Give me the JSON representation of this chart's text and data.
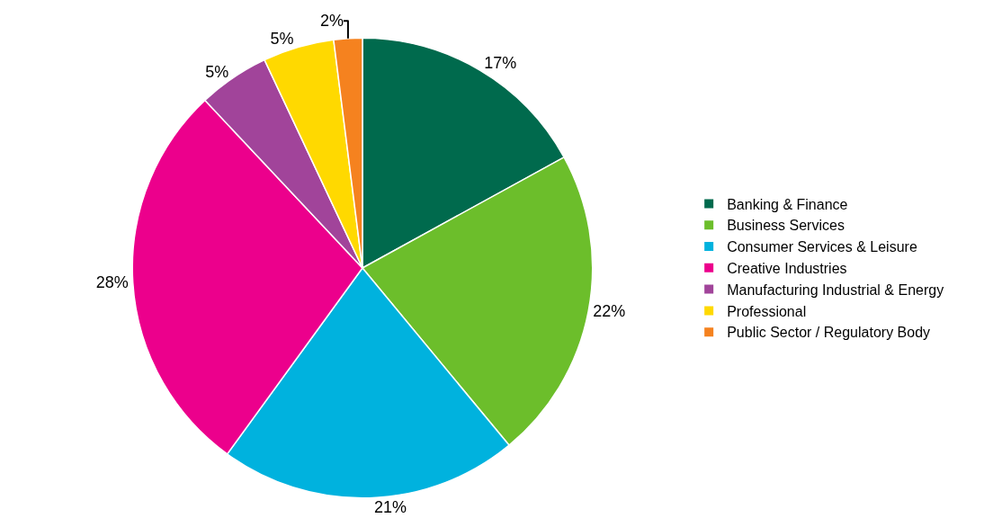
{
  "chart_data": {
    "type": "pie",
    "categories": [
      "Banking & Finance",
      "Business Services",
      "Consumer Services & Leisure",
      "Creative Industries",
      "Manufacturing Industrial & Energy",
      "Professional",
      "Public Sector / Regulatory Body"
    ],
    "values": [
      17,
      22,
      21,
      28,
      5,
      5,
      2
    ],
    "colors": [
      "#006a4d",
      "#6cbe2b",
      "#00b2de",
      "#ec008c",
      "#a1449a",
      "#ffd900",
      "#f5821f"
    ],
    "value_labels": [
      "17%",
      "22%",
      "21%",
      "28%",
      "5%",
      "5%",
      "2%"
    ],
    "legend": "right"
  }
}
